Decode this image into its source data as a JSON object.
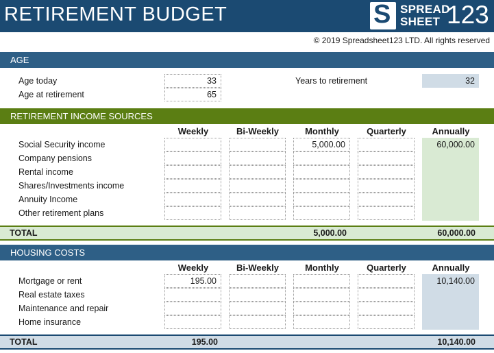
{
  "header": {
    "title": "RETIREMENT BUDGET",
    "logo_letter": "S",
    "logo_line1": "SPREAD",
    "logo_line2": "SHEET",
    "logo_number": "123"
  },
  "copyright": "© 2019 Spreadsheet123 LTD. All rights reserved",
  "age": {
    "section_title": "AGE",
    "age_today_label": "Age today",
    "age_today_value": "33",
    "age_retirement_label": "Age at retirement",
    "age_retirement_value": "65",
    "years_to_retirement_label": "Years to retirement",
    "years_to_retirement_value": "32"
  },
  "columns": [
    "Weekly",
    "Bi-Weekly",
    "Monthly",
    "Quarterly",
    "Annually"
  ],
  "income": {
    "section_title": "RETIREMENT INCOME SOURCES",
    "rows": [
      {
        "label": "Social Security income",
        "weekly": "",
        "biweekly": "",
        "monthly": "5,000.00",
        "quarterly": "",
        "annually": "60,000.00"
      },
      {
        "label": "Company pensions",
        "weekly": "",
        "biweekly": "",
        "monthly": "",
        "quarterly": "",
        "annually": ""
      },
      {
        "label": "Rental income",
        "weekly": "",
        "biweekly": "",
        "monthly": "",
        "quarterly": "",
        "annually": ""
      },
      {
        "label": "Shares/Investments income",
        "weekly": "",
        "biweekly": "",
        "monthly": "",
        "quarterly": "",
        "annually": ""
      },
      {
        "label": "Annuity Income",
        "weekly": "",
        "biweekly": "",
        "monthly": "",
        "quarterly": "",
        "annually": ""
      },
      {
        "label": "Other retirement plans",
        "weekly": "",
        "biweekly": "",
        "monthly": "",
        "quarterly": "",
        "annually": ""
      }
    ],
    "total_label": "TOTAL",
    "total_weekly": "",
    "total_biweekly": "",
    "total_monthly": "5,000.00",
    "total_quarterly": "",
    "total_annually": "60,000.00"
  },
  "housing": {
    "section_title": "HOUSING COSTS",
    "rows": [
      {
        "label": "Mortgage or rent",
        "weekly": "195.00",
        "biweekly": "",
        "monthly": "",
        "quarterly": "",
        "annually": "10,140.00"
      },
      {
        "label": "Real estate taxes",
        "weekly": "",
        "biweekly": "",
        "monthly": "",
        "quarterly": "",
        "annually": ""
      },
      {
        "label": "Maintenance and repair",
        "weekly": "",
        "biweekly": "",
        "monthly": "",
        "quarterly": "",
        "annually": ""
      },
      {
        "label": "Home insurance",
        "weekly": "",
        "biweekly": "",
        "monthly": "",
        "quarterly": "",
        "annually": ""
      }
    ],
    "total_label": "TOTAL",
    "total_weekly": "195.00",
    "total_biweekly": "",
    "total_monthly": "",
    "total_quarterly": "",
    "total_annually": "10,140.00"
  },
  "colors": {
    "header_blue": "#1b4a72",
    "section_blue": "#2e5f86",
    "section_green": "#5b7e13",
    "annual_green": "#d9ead3",
    "annual_blue": "#d0dce6"
  }
}
